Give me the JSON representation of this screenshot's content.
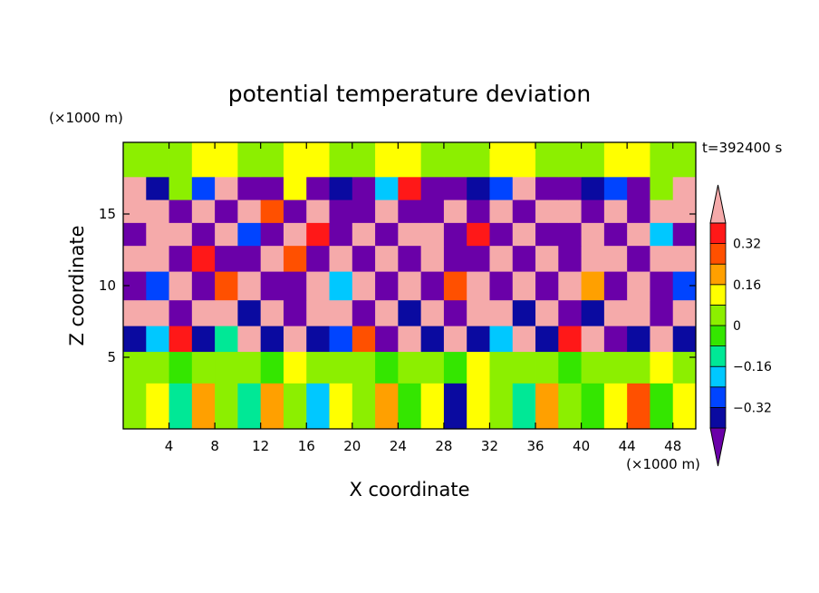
{
  "chart_data": {
    "type": "heatmap",
    "title": "potential temperature deviation",
    "xlabel": "X coordinate",
    "ylabel": "Z coordinate",
    "x_unit": "(×1000 m)",
    "y_unit": "(×1000 m)",
    "time_label": "t=392400 s",
    "xlim": [
      0,
      50
    ],
    "ylim": [
      0,
      20
    ],
    "x_ticks": [
      4,
      8,
      12,
      16,
      20,
      24,
      28,
      32,
      36,
      40,
      44,
      48
    ],
    "y_ticks": [
      5,
      10,
      15
    ],
    "colorbar": {
      "levels": [
        -0.4,
        -0.32,
        -0.24,
        -0.16,
        -0.08,
        0,
        0.08,
        0.16,
        0.24,
        0.32,
        0.4
      ],
      "colors": [
        "#6a00a8",
        "#0a0aa0",
        "#0044ff",
        "#00c8ff",
        "#00e896",
        "#34e600",
        "#8cef00",
        "#ffff00",
        "#ffa000",
        "#ff5000",
        "#ff1818",
        "#f5aaaa"
      ],
      "labels": [
        {
          "value": 0.32,
          "text": "0.32"
        },
        {
          "value": 0.16,
          "text": "0.16"
        },
        {
          "value": 0,
          "text": "0"
        },
        {
          "value": -0.16,
          "text": "−0.16"
        },
        {
          "value": -0.32,
          "text": "−0.32"
        }
      ]
    },
    "field_bands": [
      {
        "z": [
          0,
          3.2
        ],
        "values": [
          0.04,
          0.12,
          -0.1,
          0.2,
          0.02,
          -0.12,
          0.16,
          0.06,
          -0.2,
          0.1,
          0.0,
          0.18,
          -0.06,
          0.08,
          -0.34,
          0.14,
          0.04,
          -0.14,
          0.22,
          0.02,
          -0.08,
          0.12,
          0.28,
          -0.04,
          0.1
        ]
      },
      {
        "z": [
          3.2,
          5.4
        ],
        "values": [
          0.02,
          0.04,
          -0.04,
          0.06,
          0.0,
          0.02,
          -0.02,
          0.08,
          0.04,
          0.0,
          0.06,
          -0.02,
          0.02,
          0.04,
          -0.06,
          0.1,
          0.02,
          0.0,
          0.04,
          -0.04,
          0.06,
          0.02,
          0.0,
          0.08,
          0.04
        ]
      },
      {
        "z": [
          5.4,
          7.2
        ],
        "values": [
          -0.4,
          -0.24,
          0.36,
          -0.4,
          -0.16,
          0.42,
          -0.36,
          0.42,
          -0.4,
          -0.3,
          0.24,
          -0.42,
          0.42,
          -0.38,
          0.4,
          -0.4,
          -0.2,
          0.4,
          -0.4,
          0.36,
          0.42,
          -0.42,
          -0.34,
          0.42,
          -0.4
        ]
      },
      {
        "z": [
          7.2,
          9.0
        ],
        "values": [
          0.42,
          0.4,
          -0.42,
          0.42,
          0.42,
          -0.4,
          0.42,
          -0.42,
          0.4,
          0.42,
          -0.42,
          0.4,
          -0.4,
          0.42,
          -0.42,
          0.42,
          0.42,
          -0.4,
          0.42,
          -0.42,
          -0.4,
          0.42,
          0.4,
          -0.42,
          0.42
        ]
      },
      {
        "z": [
          9.0,
          11.0
        ],
        "values": [
          -0.42,
          -0.32,
          0.42,
          -0.42,
          0.24,
          0.42,
          -0.42,
          -0.42,
          0.42,
          -0.2,
          0.42,
          -0.42,
          0.42,
          -0.42,
          0.3,
          0.42,
          -0.42,
          0.42,
          -0.42,
          0.42,
          0.2,
          -0.42,
          0.42,
          -0.42,
          -0.3
        ]
      },
      {
        "z": [
          11.0,
          12.8
        ],
        "values": [
          0.42,
          0.42,
          -0.42,
          0.36,
          -0.42,
          -0.42,
          0.42,
          0.28,
          -0.42,
          0.42,
          -0.42,
          0.42,
          -0.42,
          0.42,
          -0.42,
          -0.42,
          0.42,
          -0.42,
          0.42,
          -0.42,
          0.42,
          0.42,
          -0.42,
          0.42,
          0.42
        ]
      },
      {
        "z": [
          12.8,
          14.4
        ],
        "values": [
          -0.42,
          0.42,
          0.4,
          -0.42,
          0.42,
          -0.3,
          -0.42,
          0.42,
          0.32,
          -0.42,
          0.42,
          -0.42,
          0.42,
          0.42,
          -0.42,
          0.36,
          -0.42,
          0.42,
          -0.42,
          -0.42,
          0.42,
          -0.42,
          0.42,
          -0.2,
          -0.42
        ]
      },
      {
        "z": [
          14.4,
          16.0
        ],
        "values": [
          0.42,
          0.42,
          -0.42,
          0.42,
          -0.42,
          0.42,
          0.3,
          -0.42,
          0.42,
          -0.42,
          -0.42,
          0.42,
          -0.42,
          -0.42,
          0.42,
          -0.42,
          0.42,
          -0.42,
          0.42,
          0.42,
          -0.42,
          0.42,
          -0.42,
          0.42,
          0.42
        ]
      },
      {
        "z": [
          16.0,
          17.6
        ],
        "values": [
          0.42,
          -0.34,
          0.0,
          -0.26,
          0.4,
          -0.42,
          -0.42,
          0.12,
          -0.42,
          -0.36,
          -0.42,
          -0.2,
          0.36,
          -0.42,
          -0.42,
          -0.36,
          -0.3,
          0.42,
          -0.42,
          -0.42,
          -0.34,
          -0.26,
          -0.42,
          0.0,
          0.42
        ]
      },
      {
        "z": [
          17.6,
          20
        ],
        "values": [
          0.04,
          0.0,
          0.06,
          0.08,
          0.08,
          0.06,
          0.04,
          0.08,
          0.08,
          0.0,
          0.04,
          0.08,
          0.08,
          0.06,
          0.0,
          0.04,
          0.08,
          0.08,
          0.06,
          0.04,
          0.0,
          0.08,
          0.08,
          0.04,
          0.06
        ]
      }
    ]
  }
}
